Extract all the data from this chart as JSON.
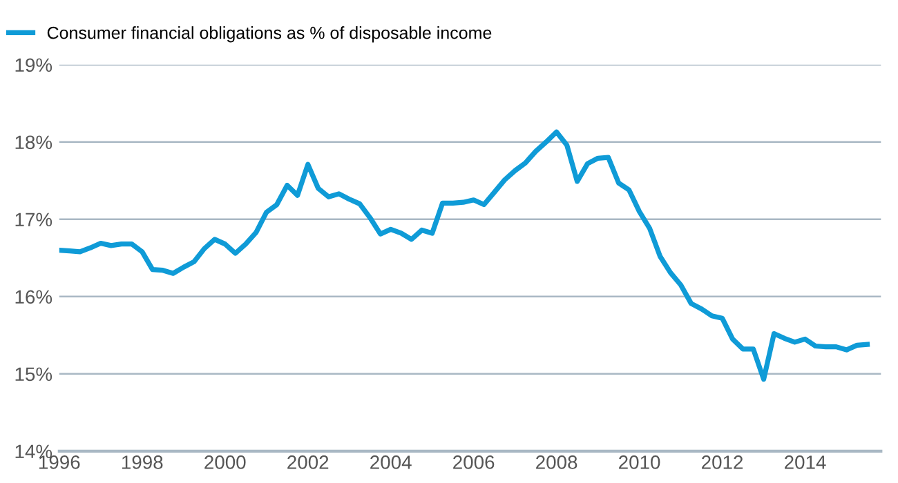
{
  "chart_data": {
    "type": "line",
    "x": [
      1996.0,
      1996.25,
      1996.5,
      1996.75,
      1997.0,
      1997.25,
      1997.5,
      1997.75,
      1998.0,
      1998.25,
      1998.5,
      1998.75,
      1999.0,
      1999.25,
      1999.5,
      1999.75,
      2000.0,
      2000.25,
      2000.5,
      2000.75,
      2001.0,
      2001.25,
      2001.5,
      2001.75,
      2002.0,
      2002.25,
      2002.5,
      2002.75,
      2003.0,
      2003.25,
      2003.5,
      2003.75,
      2004.0,
      2004.25,
      2004.5,
      2004.75,
      2005.0,
      2005.25,
      2005.5,
      2005.75,
      2006.0,
      2006.25,
      2006.5,
      2006.75,
      2007.0,
      2007.25,
      2007.5,
      2007.75,
      2008.0,
      2008.25,
      2008.5,
      2008.75,
      2009.0,
      2009.25,
      2009.5,
      2009.75,
      2010.0,
      2010.25,
      2010.5,
      2010.75,
      2011.0,
      2011.25,
      2011.5,
      2011.75,
      2012.0,
      2012.25,
      2012.5,
      2012.75,
      2013.0,
      2013.25,
      2013.5,
      2013.75,
      2014.0,
      2014.25,
      2014.5,
      2014.75,
      2015.0,
      2015.25,
      2015.5
    ],
    "series": [
      {
        "name": "Consumer financial obligations as % of disposable income",
        "color": "#0f9bd7",
        "values": [
          16.6,
          16.59,
          16.58,
          16.63,
          16.69,
          16.66,
          16.68,
          16.68,
          16.58,
          16.35,
          16.34,
          16.3,
          16.38,
          16.45,
          16.62,
          16.74,
          16.68,
          16.56,
          16.68,
          16.83,
          17.09,
          17.19,
          17.44,
          17.31,
          17.71,
          17.4,
          17.29,
          17.33,
          17.26,
          17.2,
          17.02,
          16.81,
          16.87,
          16.82,
          16.74,
          16.86,
          16.82,
          17.21,
          17.21,
          17.22,
          17.25,
          17.19,
          17.35,
          17.51,
          17.63,
          17.73,
          17.88,
          18.0,
          18.13,
          17.96,
          17.49,
          17.72,
          17.79,
          17.8,
          17.47,
          17.38,
          17.1,
          16.88,
          16.52,
          16.31,
          16.15,
          15.91,
          15.84,
          15.75,
          15.72,
          15.45,
          15.32,
          15.32,
          14.93,
          15.52,
          15.46,
          15.41,
          15.45,
          15.36,
          15.35,
          15.35,
          15.31,
          15.37,
          15.38
        ]
      }
    ],
    "xlim": [
      1996,
      2015.83
    ],
    "xticks": [
      1996,
      1998,
      2000,
      2002,
      2004,
      2006,
      2008,
      2010,
      2012,
      2014
    ],
    "ylim": [
      14,
      19
    ],
    "yticks": [
      {
        "value": 14,
        "label": "14%"
      },
      {
        "value": 15,
        "label": "15%"
      },
      {
        "value": 16,
        "label": "16%"
      },
      {
        "value": 17,
        "label": "17%"
      },
      {
        "value": 18,
        "label": "18%"
      },
      {
        "value": 19,
        "label": "19%"
      }
    ],
    "grid": "y",
    "legend": "top left",
    "marker": "none",
    "line_style": "solid"
  }
}
